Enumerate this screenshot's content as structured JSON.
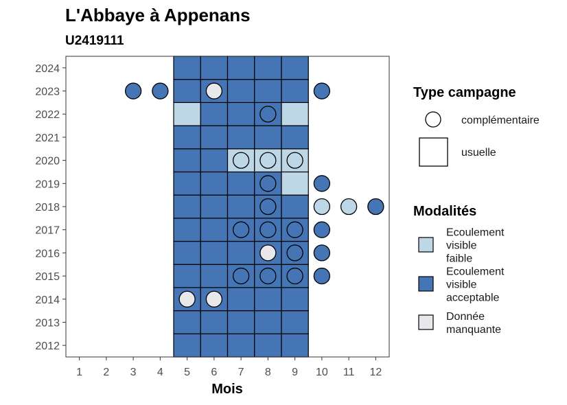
{
  "chart_data": {
    "type": "heatmap",
    "title": "L'Abbaye à Appenans",
    "subtitle": "U2419111",
    "xlabel": "Mois",
    "ylabel": "",
    "x_ticks": [
      1,
      2,
      3,
      4,
      5,
      6,
      7,
      8,
      9,
      10,
      11,
      12
    ],
    "y_ticks": [
      2012,
      2013,
      2014,
      2015,
      2016,
      2017,
      2018,
      2019,
      2020,
      2021,
      2022,
      2023,
      2024
    ],
    "xlim": [
      0.5,
      12.5
    ],
    "ylim": [
      2011.5,
      2024.5
    ],
    "colors": {
      "Ecoulement visible faible": "#bdd7e7",
      "Ecoulement visible acceptable": "#4575b4",
      "Donnée manquante": "#e8e8ec"
    },
    "legend": {
      "campaign_title": "Type campagne",
      "campaign_types": [
        "complémentaire",
        "usuelle"
      ],
      "modality_title": "Modalités",
      "modalities": [
        {
          "key": "Ecoulement visible faible",
          "lines": [
            "Ecoulement",
            "visible",
            "faible"
          ]
        },
        {
          "key": "Ecoulement visible acceptable",
          "lines": [
            "Ecoulement",
            "visible",
            "acceptable"
          ]
        },
        {
          "key": "Donnée manquante",
          "lines": [
            "Donnée",
            "manquante"
          ]
        }
      ],
      "position": "right"
    },
    "usuelle": [
      {
        "month": 5,
        "year": 2012,
        "modalite": "Ecoulement visible acceptable"
      },
      {
        "month": 6,
        "year": 2012,
        "modalite": "Ecoulement visible acceptable"
      },
      {
        "month": 7,
        "year": 2012,
        "modalite": "Ecoulement visible acceptable"
      },
      {
        "month": 8,
        "year": 2012,
        "modalite": "Ecoulement visible acceptable"
      },
      {
        "month": 9,
        "year": 2012,
        "modalite": "Ecoulement visible acceptable"
      },
      {
        "month": 5,
        "year": 2013,
        "modalite": "Ecoulement visible acceptable"
      },
      {
        "month": 6,
        "year": 2013,
        "modalite": "Ecoulement visible acceptable"
      },
      {
        "month": 7,
        "year": 2013,
        "modalite": "Ecoulement visible acceptable"
      },
      {
        "month": 8,
        "year": 2013,
        "modalite": "Ecoulement visible acceptable"
      },
      {
        "month": 9,
        "year": 2013,
        "modalite": "Ecoulement visible acceptable"
      },
      {
        "month": 5,
        "year": 2014,
        "modalite": "Ecoulement visible acceptable"
      },
      {
        "month": 6,
        "year": 2014,
        "modalite": "Ecoulement visible acceptable"
      },
      {
        "month": 7,
        "year": 2014,
        "modalite": "Ecoulement visible acceptable"
      },
      {
        "month": 8,
        "year": 2014,
        "modalite": "Ecoulement visible acceptable"
      },
      {
        "month": 9,
        "year": 2014,
        "modalite": "Ecoulement visible acceptable"
      },
      {
        "month": 5,
        "year": 2015,
        "modalite": "Ecoulement visible acceptable"
      },
      {
        "month": 6,
        "year": 2015,
        "modalite": "Ecoulement visible acceptable"
      },
      {
        "month": 7,
        "year": 2015,
        "modalite": "Ecoulement visible acceptable"
      },
      {
        "month": 8,
        "year": 2015,
        "modalite": "Ecoulement visible acceptable"
      },
      {
        "month": 9,
        "year": 2015,
        "modalite": "Ecoulement visible acceptable"
      },
      {
        "month": 5,
        "year": 2016,
        "modalite": "Ecoulement visible acceptable"
      },
      {
        "month": 6,
        "year": 2016,
        "modalite": "Ecoulement visible acceptable"
      },
      {
        "month": 7,
        "year": 2016,
        "modalite": "Ecoulement visible acceptable"
      },
      {
        "month": 8,
        "year": 2016,
        "modalite": "Ecoulement visible acceptable"
      },
      {
        "month": 9,
        "year": 2016,
        "modalite": "Ecoulement visible acceptable"
      },
      {
        "month": 5,
        "year": 2017,
        "modalite": "Ecoulement visible acceptable"
      },
      {
        "month": 6,
        "year": 2017,
        "modalite": "Ecoulement visible acceptable"
      },
      {
        "month": 7,
        "year": 2017,
        "modalite": "Ecoulement visible acceptable"
      },
      {
        "month": 8,
        "year": 2017,
        "modalite": "Ecoulement visible acceptable"
      },
      {
        "month": 9,
        "year": 2017,
        "modalite": "Ecoulement visible acceptable"
      },
      {
        "month": 5,
        "year": 2018,
        "modalite": "Ecoulement visible acceptable"
      },
      {
        "month": 6,
        "year": 2018,
        "modalite": "Ecoulement visible acceptable"
      },
      {
        "month": 7,
        "year": 2018,
        "modalite": "Ecoulement visible acceptable"
      },
      {
        "month": 8,
        "year": 2018,
        "modalite": "Ecoulement visible acceptable"
      },
      {
        "month": 9,
        "year": 2018,
        "modalite": "Ecoulement visible acceptable"
      },
      {
        "month": 5,
        "year": 2019,
        "modalite": "Ecoulement visible acceptable"
      },
      {
        "month": 6,
        "year": 2019,
        "modalite": "Ecoulement visible acceptable"
      },
      {
        "month": 7,
        "year": 2019,
        "modalite": "Ecoulement visible acceptable"
      },
      {
        "month": 8,
        "year": 2019,
        "modalite": "Ecoulement visible acceptable"
      },
      {
        "month": 9,
        "year": 2019,
        "modalite": "Ecoulement visible faible"
      },
      {
        "month": 5,
        "year": 2020,
        "modalite": "Ecoulement visible acceptable"
      },
      {
        "month": 6,
        "year": 2020,
        "modalite": "Ecoulement visible acceptable"
      },
      {
        "month": 7,
        "year": 2020,
        "modalite": "Ecoulement visible faible"
      },
      {
        "month": 8,
        "year": 2020,
        "modalite": "Ecoulement visible faible"
      },
      {
        "month": 9,
        "year": 2020,
        "modalite": "Ecoulement visible faible"
      },
      {
        "month": 5,
        "year": 2021,
        "modalite": "Ecoulement visible acceptable"
      },
      {
        "month": 6,
        "year": 2021,
        "modalite": "Ecoulement visible acceptable"
      },
      {
        "month": 7,
        "year": 2021,
        "modalite": "Ecoulement visible acceptable"
      },
      {
        "month": 8,
        "year": 2021,
        "modalite": "Ecoulement visible acceptable"
      },
      {
        "month": 9,
        "year": 2021,
        "modalite": "Ecoulement visible acceptable"
      },
      {
        "month": 5,
        "year": 2022,
        "modalite": "Ecoulement visible faible"
      },
      {
        "month": 6,
        "year": 2022,
        "modalite": "Ecoulement visible acceptable"
      },
      {
        "month": 7,
        "year": 2022,
        "modalite": "Ecoulement visible acceptable"
      },
      {
        "month": 8,
        "year": 2022,
        "modalite": "Ecoulement visible acceptable"
      },
      {
        "month": 9,
        "year": 2022,
        "modalite": "Ecoulement visible faible"
      },
      {
        "month": 5,
        "year": 2023,
        "modalite": "Ecoulement visible acceptable"
      },
      {
        "month": 6,
        "year": 2023,
        "modalite": "Ecoulement visible acceptable"
      },
      {
        "month": 7,
        "year": 2023,
        "modalite": "Ecoulement visible acceptable"
      },
      {
        "month": 8,
        "year": 2023,
        "modalite": "Ecoulement visible acceptable"
      },
      {
        "month": 9,
        "year": 2023,
        "modalite": "Ecoulement visible acceptable"
      },
      {
        "month": 5,
        "year": 2024,
        "modalite": "Ecoulement visible acceptable"
      },
      {
        "month": 6,
        "year": 2024,
        "modalite": "Ecoulement visible acceptable"
      },
      {
        "month": 7,
        "year": 2024,
        "modalite": "Ecoulement visible acceptable"
      },
      {
        "month": 8,
        "year": 2024,
        "modalite": "Ecoulement visible acceptable"
      },
      {
        "month": 9,
        "year": 2024,
        "modalite": "Ecoulement visible acceptable"
      }
    ],
    "complementaire": [
      {
        "month": 3,
        "year": 2023,
        "modalite": "Ecoulement visible acceptable"
      },
      {
        "month": 4,
        "year": 2023,
        "modalite": "Ecoulement visible acceptable"
      },
      {
        "month": 6,
        "year": 2023,
        "modalite": "Donnée manquante"
      },
      {
        "month": 10,
        "year": 2023,
        "modalite": "Ecoulement visible acceptable"
      },
      {
        "month": 8,
        "year": 2022,
        "modalite": "Ecoulement visible acceptable"
      },
      {
        "month": 7,
        "year": 2020,
        "modalite": "Ecoulement visible faible"
      },
      {
        "month": 8,
        "year": 2020,
        "modalite": "Ecoulement visible faible"
      },
      {
        "month": 9,
        "year": 2020,
        "modalite": "Ecoulement visible faible"
      },
      {
        "month": 8,
        "year": 2019,
        "modalite": "Ecoulement visible acceptable"
      },
      {
        "month": 10,
        "year": 2019,
        "modalite": "Ecoulement visible acceptable"
      },
      {
        "month": 8,
        "year": 2018,
        "modalite": "Ecoulement visible acceptable"
      },
      {
        "month": 10,
        "year": 2018,
        "modalite": "Ecoulement visible faible"
      },
      {
        "month": 11,
        "year": 2018,
        "modalite": "Ecoulement visible faible"
      },
      {
        "month": 12,
        "year": 2018,
        "modalite": "Ecoulement visible acceptable"
      },
      {
        "month": 7,
        "year": 2017,
        "modalite": "Ecoulement visible acceptable"
      },
      {
        "month": 8,
        "year": 2017,
        "modalite": "Ecoulement visible acceptable"
      },
      {
        "month": 9,
        "year": 2017,
        "modalite": "Ecoulement visible acceptable"
      },
      {
        "month": 10,
        "year": 2017,
        "modalite": "Ecoulement visible acceptable"
      },
      {
        "month": 8,
        "year": 2016,
        "modalite": "Donnée manquante"
      },
      {
        "month": 9,
        "year": 2016,
        "modalite": "Ecoulement visible acceptable"
      },
      {
        "month": 10,
        "year": 2016,
        "modalite": "Ecoulement visible acceptable"
      },
      {
        "month": 7,
        "year": 2015,
        "modalite": "Ecoulement visible acceptable"
      },
      {
        "month": 8,
        "year": 2015,
        "modalite": "Ecoulement visible acceptable"
      },
      {
        "month": 9,
        "year": 2015,
        "modalite": "Ecoulement visible acceptable"
      },
      {
        "month": 10,
        "year": 2015,
        "modalite": "Ecoulement visible acceptable"
      },
      {
        "month": 5,
        "year": 2014,
        "modalite": "Donnée manquante"
      },
      {
        "month": 6,
        "year": 2014,
        "modalite": "Donnée manquante"
      }
    ]
  }
}
